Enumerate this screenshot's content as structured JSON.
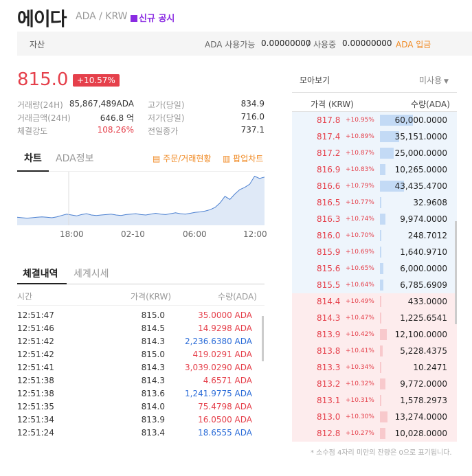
{
  "header": {
    "coin_name": "에이다",
    "pair": "ADA / KRW",
    "notice_label": "신규 공시"
  },
  "asset_bar": {
    "label": "자산",
    "available_label": "ADA 사용가능",
    "available_value": "0.00000000",
    "sep": "/",
    "in_use_label": "사용중",
    "in_use_value": "0.00000000",
    "deposit_label": "ADA 입금"
  },
  "ticker": {
    "price": "815.0",
    "change_pct": "+10.57%",
    "stats_left": [
      {
        "label": "거래량(24H)",
        "value": "85,867,489ADA"
      },
      {
        "label": "거래금액(24H)",
        "value": "646.8 억"
      },
      {
        "label": "체결강도",
        "value": "108.26%"
      }
    ],
    "stats_right": [
      {
        "label": "고가(당일)",
        "value": "834.9"
      },
      {
        "label": "저가(당일)",
        "value": "716.0"
      },
      {
        "label": "전일종가",
        "value": "737.1"
      }
    ]
  },
  "chart_tabs": {
    "tab_chart": "차트",
    "tab_info": "ADA정보",
    "order_link": "주문/거래현황",
    "popup_link": "팝업차트"
  },
  "chart_data": {
    "type": "area",
    "x_ticks": [
      "18:00",
      "02-10",
      "06:00",
      "12:00"
    ],
    "title": "",
    "xlabel": "",
    "ylabel": "",
    "values": [
      738,
      737,
      736,
      737,
      738,
      739,
      738,
      737,
      739,
      742,
      745,
      743,
      741,
      744,
      746,
      743,
      742,
      743,
      744,
      745,
      743,
      742,
      744,
      745,
      746,
      744,
      743,
      745,
      747,
      745,
      744,
      746,
      748,
      746,
      745,
      747,
      749,
      750,
      752,
      755,
      760,
      770,
      785,
      778,
      790,
      800,
      805,
      812,
      830,
      825,
      828
    ],
    "ylim": [
      720,
      840
    ],
    "grid": false
  },
  "trades": {
    "tab_active": "체결내역",
    "tab_other": "세계시세",
    "headers": {
      "time": "시간",
      "price": "가격(KRW)",
      "qty": "수량(ADA)"
    },
    "rows": [
      {
        "time": "12:51:47",
        "price": "815.0",
        "qty": "35.0000 ADA",
        "side": "buy"
      },
      {
        "time": "12:51:46",
        "price": "814.5",
        "qty": "14.9298 ADA",
        "side": "buy"
      },
      {
        "time": "12:51:42",
        "price": "814.3",
        "qty": "2,236.6380 ADA",
        "side": "sell"
      },
      {
        "time": "12:51:42",
        "price": "815.0",
        "qty": "419.0291 ADA",
        "side": "buy"
      },
      {
        "time": "12:51:41",
        "price": "814.3",
        "qty": "3,039.0290 ADA",
        "side": "buy"
      },
      {
        "time": "12:51:38",
        "price": "814.3",
        "qty": "4.6571 ADA",
        "side": "buy"
      },
      {
        "time": "12:51:38",
        "price": "813.6",
        "qty": "1,241.9775 ADA",
        "side": "sell"
      },
      {
        "time": "12:51:35",
        "price": "814.0",
        "qty": "75.4798 ADA",
        "side": "buy"
      },
      {
        "time": "12:51:34",
        "price": "813.9",
        "qty": "16.0500 ADA",
        "side": "buy"
      },
      {
        "time": "12:51:24",
        "price": "813.4",
        "qty": "18.6555 ADA",
        "side": "sell"
      }
    ]
  },
  "orderbook": {
    "view_label": "모아보기",
    "unused_label": "미사용",
    "header_price": "가격 (KRW)",
    "header_qty": "수량(ADA)",
    "asks": [
      {
        "price": "817.8",
        "change": "+10.95%",
        "qty": "60,000.0000",
        "level": 1.0
      },
      {
        "price": "817.4",
        "change": "+10.89%",
        "qty": "35,151.0000",
        "level": 0.59
      },
      {
        "price": "817.2",
        "change": "+10.87%",
        "qty": "25,000.0000",
        "level": 0.42
      },
      {
        "price": "816.9",
        "change": "+10.83%",
        "qty": "10,265.0000",
        "level": 0.17
      },
      {
        "price": "816.6",
        "change": "+10.79%",
        "qty": "43,435.4700",
        "level": 0.72
      },
      {
        "price": "816.5",
        "change": "+10.77%",
        "qty": "32.9608",
        "level": 0.0
      },
      {
        "price": "816.3",
        "change": "+10.74%",
        "qty": "9,974.0000",
        "level": 0.17
      },
      {
        "price": "816.0",
        "change": "+10.70%",
        "qty": "248.7012",
        "level": 0.01
      },
      {
        "price": "815.9",
        "change": "+10.69%",
        "qty": "1,640.9710",
        "level": 0.03
      },
      {
        "price": "815.6",
        "change": "+10.65%",
        "qty": "6,000.0000",
        "level": 0.1
      },
      {
        "price": "815.5",
        "change": "+10.64%",
        "qty": "6,785.6909",
        "level": 0.11
      }
    ],
    "bids": [
      {
        "price": "814.4",
        "change": "+10.49%",
        "qty": "433.0000",
        "level": 0.01
      },
      {
        "price": "814.3",
        "change": "+10.47%",
        "qty": "1,225.6541",
        "level": 0.02
      },
      {
        "price": "813.9",
        "change": "+10.42%",
        "qty": "12,100.0000",
        "level": 0.2
      },
      {
        "price": "813.8",
        "change": "+10.41%",
        "qty": "5,228.4375",
        "level": 0.09
      },
      {
        "price": "813.3",
        "change": "+10.34%",
        "qty": "10.2471",
        "level": 0.0
      },
      {
        "price": "813.2",
        "change": "+10.32%",
        "qty": "9,772.0000",
        "level": 0.16
      },
      {
        "price": "813.1",
        "change": "+10.31%",
        "qty": "1,578.2973",
        "level": 0.03
      },
      {
        "price": "813.0",
        "change": "+10.30%",
        "qty": "13,274.0000",
        "level": 0.22
      },
      {
        "price": "812.8",
        "change": "+10.27%",
        "qty": "10,028.0000",
        "level": 0.17
      }
    ],
    "footnote": "* 소수점 4자리 미만의 잔량은 0으로 표기됩니다."
  },
  "colors": {
    "up": "#e5404b",
    "down": "#2b6cd8",
    "accent": "#f08a24",
    "notice": "#8a2be2"
  }
}
